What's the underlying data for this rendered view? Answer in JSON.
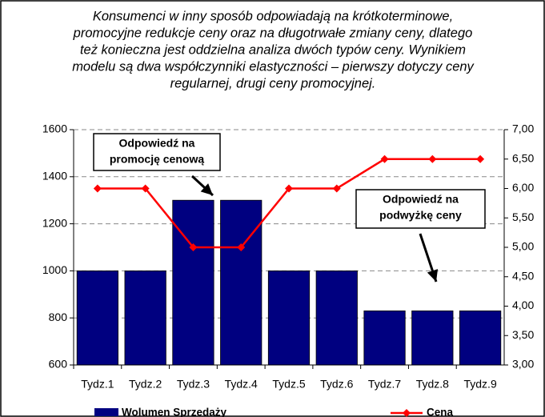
{
  "chart_data": {
    "type": "bar-line",
    "title": [
      "Konsumenci w inny sposób odpowiadają na krótkoterminowe,",
      "promocyjne redukcje ceny oraz na długotrwałe zmiany ceny, dlatego",
      "też konieczna jest oddzielna analiza dwóch typów ceny. Wynikiem",
      "modelu są dwa współczynniki elastyczności – pierwszy dotyczy ceny",
      "regularnej, drugi ceny promocyjnej."
    ],
    "categories": [
      "Tydz.1",
      "Tydz.2",
      "Tydz.3",
      "Tydz.4",
      "Tydz.5",
      "Tydz.6",
      "Tydz.7",
      "Tydz.8",
      "Tydz.9"
    ],
    "series": [
      {
        "name": "Wolumen Sprzedaży",
        "type": "bar",
        "color": "#000080",
        "values": [
          1000,
          1000,
          1300,
          1300,
          1000,
          1000,
          830,
          830,
          830
        ]
      },
      {
        "name": "Cena",
        "type": "line",
        "axis": "y2",
        "color": "#ff0000",
        "values": [
          6,
          6,
          5,
          5,
          6,
          6,
          6.5,
          6.5,
          6.5
        ]
      }
    ],
    "ylim": [
      600,
      1600
    ],
    "yticks": [
      600,
      800,
      1000,
      1200,
      1400,
      1600
    ],
    "y2lim": [
      3,
      7
    ],
    "y2ticks": [
      {
        "value": 3,
        "label": "3,00"
      },
      {
        "value": 3.5,
        "label": "3,50"
      },
      {
        "value": 4,
        "label": "4,00"
      },
      {
        "value": 4.5,
        "label": "4,50"
      },
      {
        "value": 5,
        "label": "5,00"
      },
      {
        "value": 5.5,
        "label": "5,50"
      },
      {
        "value": 6,
        "label": "6,00"
      },
      {
        "value": 6.5,
        "label": "6,50"
      },
      {
        "value": 7,
        "label": "7,00"
      }
    ],
    "grid": true,
    "annotations": [
      [
        "Odpowiedź na",
        "promocję cenową"
      ],
      [
        "Odpowiedź na",
        "podwyżkę ceny"
      ]
    ]
  }
}
